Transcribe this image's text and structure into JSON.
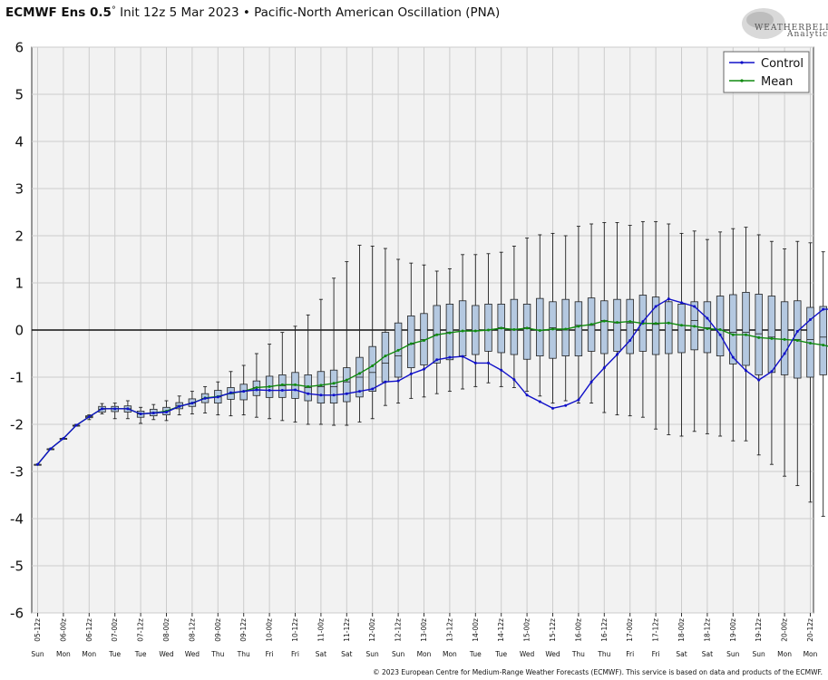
{
  "header": {
    "model": "ECMWF Ens 0.5",
    "degree": "°",
    "init": " Init 12z 5 Mar 2023",
    "bullet": " • ",
    "index": "Pacific-North American Oscillation (PNA)"
  },
  "logo": {
    "text": "WEATHERBELL",
    "sub": "Analytics LLC"
  },
  "footer": "© 2023 European Centre for Medium-Range Weather Forecasts (ECMWF). This service is based on data and products of the ECMWF.",
  "legend": {
    "position": "top-right",
    "items": [
      {
        "label": "Control",
        "color": "#1010c8"
      },
      {
        "label": "Mean",
        "color": "#108a10"
      }
    ]
  },
  "chart_data": {
    "type": "box",
    "title": "ECMWF Ens 0.5° Init 12z 5 Mar 2023 • Pacific-North American Oscillation (PNA)",
    "ylim": [
      -6,
      6
    ],
    "yticks": [
      6,
      5,
      4,
      3,
      2,
      1,
      0,
      -1,
      -2,
      -3,
      -4,
      -5,
      -6
    ],
    "grid": true,
    "colors": {
      "box_fill": "#b4c8e0",
      "control": "#1010c8",
      "mean": "#108a10",
      "grid": "#cccccc",
      "plot_bg": "#f2f2f2"
    },
    "x_labels": [
      "05-12z",
      "06-00z",
      "06-12z",
      "07-00z",
      "07-12z",
      "08-00z",
      "08-12z",
      "09-00z",
      "09-12z",
      "10-00z",
      "10-12z",
      "11-00z",
      "11-12z",
      "12-00z",
      "12-12z",
      "13-00z",
      "13-12z",
      "14-00z",
      "14-12z",
      "15-00z",
      "15-12z",
      "16-00z",
      "16-12z",
      "17-00z",
      "17-12z",
      "18-00z",
      "18-12z",
      "19-00z",
      "19-12z",
      "20-00z",
      "20-12z"
    ],
    "day_labels": [
      "Sun",
      "Mon",
      "Mon",
      "Tue",
      "Tue",
      "Wed",
      "Wed",
      "Thu",
      "Thu",
      "Fri",
      "Fri",
      "Sat",
      "Sat",
      "Sun",
      "Sun",
      "Mon",
      "Mon",
      "Tue",
      "Tue",
      "Wed",
      "Wed",
      "Thu",
      "Thu",
      "Fri",
      "Fri",
      "Sat",
      "Sat",
      "Sun",
      "Sun",
      "Mon",
      "Mon"
    ],
    "control": [
      -2.85,
      -2.52,
      -2.3,
      -2.02,
      -1.84,
      -1.67,
      -1.67,
      -1.67,
      -1.78,
      -1.76,
      -1.74,
      -1.62,
      -1.55,
      -1.45,
      -1.42,
      -1.33,
      -1.3,
      -1.27,
      -1.28,
      -1.28,
      -1.27,
      -1.35,
      -1.38,
      -1.38,
      -1.35,
      -1.3,
      -1.25,
      -1.1,
      -1.08,
      -0.93,
      -0.83,
      -0.63,
      -0.58,
      -0.56,
      -0.7,
      -0.7,
      -0.85,
      -1.05,
      -1.38,
      -1.52,
      -1.66,
      -1.6,
      -1.48,
      -1.1,
      -0.8,
      -0.52,
      -0.22,
      0.18,
      0.5,
      0.66,
      0.58,
      0.5,
      0.25,
      -0.1,
      -0.58,
      -0.86,
      -1.06,
      -0.88,
      -0.5,
      -0.03,
      0.22,
      0.44,
      0.44
    ],
    "mean": [
      -2.85,
      -2.52,
      -2.3,
      -2.02,
      -1.84,
      -1.67,
      -1.67,
      -1.67,
      -1.78,
      -1.76,
      -1.72,
      -1.62,
      -1.55,
      -1.44,
      -1.41,
      -1.34,
      -1.3,
      -1.22,
      -1.2,
      -1.16,
      -1.16,
      -1.2,
      -1.17,
      -1.13,
      -1.06,
      -0.92,
      -0.76,
      -0.55,
      -0.43,
      -0.29,
      -0.22,
      -0.1,
      -0.06,
      -0.02,
      -0.02,
      0.0,
      0.04,
      0.01,
      0.04,
      -0.01,
      0.02,
      0.02,
      0.08,
      0.12,
      0.19,
      0.16,
      0.18,
      0.14,
      0.14,
      0.15,
      0.1,
      0.08,
      0.03,
      0.01,
      -0.1,
      -0.1,
      -0.16,
      -0.18,
      -0.2,
      -0.22,
      -0.28,
      -0.32,
      -0.38
    ],
    "box_q1": [
      -2.85,
      -2.52,
      -2.3,
      -2.02,
      -1.86,
      -1.74,
      -1.73,
      -1.74,
      -1.85,
      -1.82,
      -1.8,
      -1.67,
      -1.62,
      -1.54,
      -1.55,
      -1.47,
      -1.48,
      -1.39,
      -1.43,
      -1.43,
      -1.45,
      -1.5,
      -1.55,
      -1.55,
      -1.52,
      -1.42,
      -1.3,
      -1.1,
      -1.0,
      -0.8,
      -0.74,
      -0.7,
      -0.63,
      -0.55,
      -0.52,
      -0.45,
      -0.48,
      -0.52,
      -0.62,
      -0.55,
      -0.6,
      -0.55,
      -0.55,
      -0.45,
      -0.5,
      -0.45,
      -0.5,
      -0.45,
      -0.52,
      -0.5,
      -0.48,
      -0.42,
      -0.48,
      -0.55,
      -0.72,
      -0.75,
      -0.95,
      -0.9,
      -0.95,
      -1.02,
      -1.0,
      -0.95,
      -1.05
    ],
    "box_q3": [
      -2.85,
      -2.52,
      -2.3,
      -2.02,
      -1.82,
      -1.62,
      -1.62,
      -1.61,
      -1.72,
      -1.68,
      -1.64,
      -1.54,
      -1.46,
      -1.35,
      -1.28,
      -1.22,
      -1.15,
      -1.08,
      -0.98,
      -0.95,
      -0.9,
      -0.95,
      -0.88,
      -0.85,
      -0.8,
      -0.58,
      -0.35,
      -0.05,
      0.15,
      0.3,
      0.35,
      0.52,
      0.55,
      0.62,
      0.52,
      0.55,
      0.55,
      0.65,
      0.55,
      0.67,
      0.6,
      0.65,
      0.6,
      0.68,
      0.62,
      0.65,
      0.65,
      0.74,
      0.7,
      0.6,
      0.55,
      0.6,
      0.6,
      0.72,
      0.75,
      0.8,
      0.76,
      0.72,
      0.6,
      0.62,
      0.48,
      0.5,
      0.4
    ],
    "box_median": [
      -2.85,
      -2.52,
      -2.3,
      -2.02,
      -1.84,
      -1.68,
      -1.67,
      -1.67,
      -1.78,
      -1.75,
      -1.72,
      -1.6,
      -1.55,
      -1.45,
      -1.42,
      -1.35,
      -1.3,
      -1.22,
      -1.2,
      -1.18,
      -1.17,
      -1.22,
      -1.2,
      -1.2,
      -1.1,
      -1.0,
      -0.9,
      -0.7,
      -0.55,
      -0.3,
      -0.2,
      -0.1,
      -0.05,
      -0.02,
      -0.02,
      0.0,
      0.05,
      0.0,
      0.05,
      0.0,
      0.05,
      0.0,
      0.1,
      0.1,
      0.2,
      0.15,
      0.15,
      0.15,
      0.12,
      0.15,
      0.1,
      0.2,
      0.05,
      0.0,
      -0.05,
      -0.05,
      -0.08,
      -0.15,
      -0.2,
      -0.2,
      -0.2,
      -0.15,
      -0.35
    ],
    "whisker_low": [
      -2.85,
      -2.52,
      -2.3,
      -2.04,
      -1.9,
      -1.78,
      -1.88,
      -1.88,
      -1.98,
      -1.9,
      -1.92,
      -1.8,
      -1.78,
      -1.76,
      -1.8,
      -1.82,
      -1.8,
      -1.85,
      -1.88,
      -1.92,
      -1.95,
      -2.0,
      -2.0,
      -2.02,
      -2.02,
      -1.95,
      -1.88,
      -1.6,
      -1.55,
      -1.45,
      -1.42,
      -1.35,
      -1.3,
      -1.25,
      -1.2,
      -1.12,
      -1.2,
      -1.22,
      -1.3,
      -1.4,
      -1.55,
      -1.5,
      -1.55,
      -1.55,
      -1.75,
      -1.8,
      -1.82,
      -1.85,
      -2.1,
      -2.22,
      -2.25,
      -2.15,
      -2.2,
      -2.25,
      -2.35,
      -2.35,
      -2.65,
      -2.85,
      -3.1,
      -3.3,
      -3.65,
      -3.95,
      -4.25
    ],
    "whisker_high": [
      -2.85,
      -2.52,
      -2.3,
      -2.0,
      -1.8,
      -1.56,
      -1.55,
      -1.5,
      -1.64,
      -1.58,
      -1.5,
      -1.4,
      -1.3,
      -1.2,
      -1.1,
      -0.88,
      -0.75,
      -0.5,
      -0.3,
      -0.05,
      0.08,
      0.32,
      0.65,
      1.1,
      1.45,
      1.8,
      1.78,
      1.73,
      1.5,
      1.42,
      1.38,
      1.25,
      1.3,
      1.6,
      1.6,
      1.62,
      1.65,
      1.78,
      1.95,
      2.02,
      2.05,
      2.0,
      2.2,
      2.25,
      2.28,
      2.28,
      2.22,
      2.3,
      2.3,
      2.25,
      2.05,
      2.1,
      1.92,
      2.08,
      2.15,
      2.18,
      2.02,
      1.88,
      1.72,
      1.88,
      1.85,
      1.66,
      1.55
    ]
  }
}
